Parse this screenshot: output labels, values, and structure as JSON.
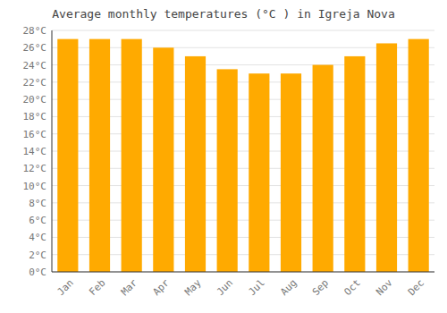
{
  "chart_data": {
    "type": "bar",
    "title": "Average monthly temperatures (°C ) in Igreja Nova",
    "categories": [
      "Jan",
      "Feb",
      "Mar",
      "Apr",
      "May",
      "Jun",
      "Jul",
      "Aug",
      "Sep",
      "Oct",
      "Nov",
      "Dec"
    ],
    "values": [
      27,
      27,
      27,
      26,
      25,
      23.5,
      23,
      23,
      24,
      25,
      26.5,
      27
    ],
    "color": "#FFAA00",
    "ylim": [
      0,
      28
    ],
    "yticks": [
      {
        "value": 0,
        "label": "0°C"
      },
      {
        "value": 2,
        "label": "2°C"
      },
      {
        "value": 4,
        "label": "4°C"
      },
      {
        "value": 6,
        "label": "6°C"
      },
      {
        "value": 8,
        "label": "8°C"
      },
      {
        "value": 10,
        "label": "10°C"
      },
      {
        "value": 12,
        "label": "12°C"
      },
      {
        "value": 14,
        "label": "14°C"
      },
      {
        "value": 16,
        "label": "16°C"
      },
      {
        "value": 18,
        "label": "18°C"
      },
      {
        "value": 20,
        "label": "20°C"
      },
      {
        "value": 22,
        "label": "22°C"
      },
      {
        "value": 24,
        "label": "24°C"
      },
      {
        "value": 26,
        "label": "26°C"
      },
      {
        "value": 28,
        "label": "28°C"
      }
    ],
    "grid": true
  }
}
